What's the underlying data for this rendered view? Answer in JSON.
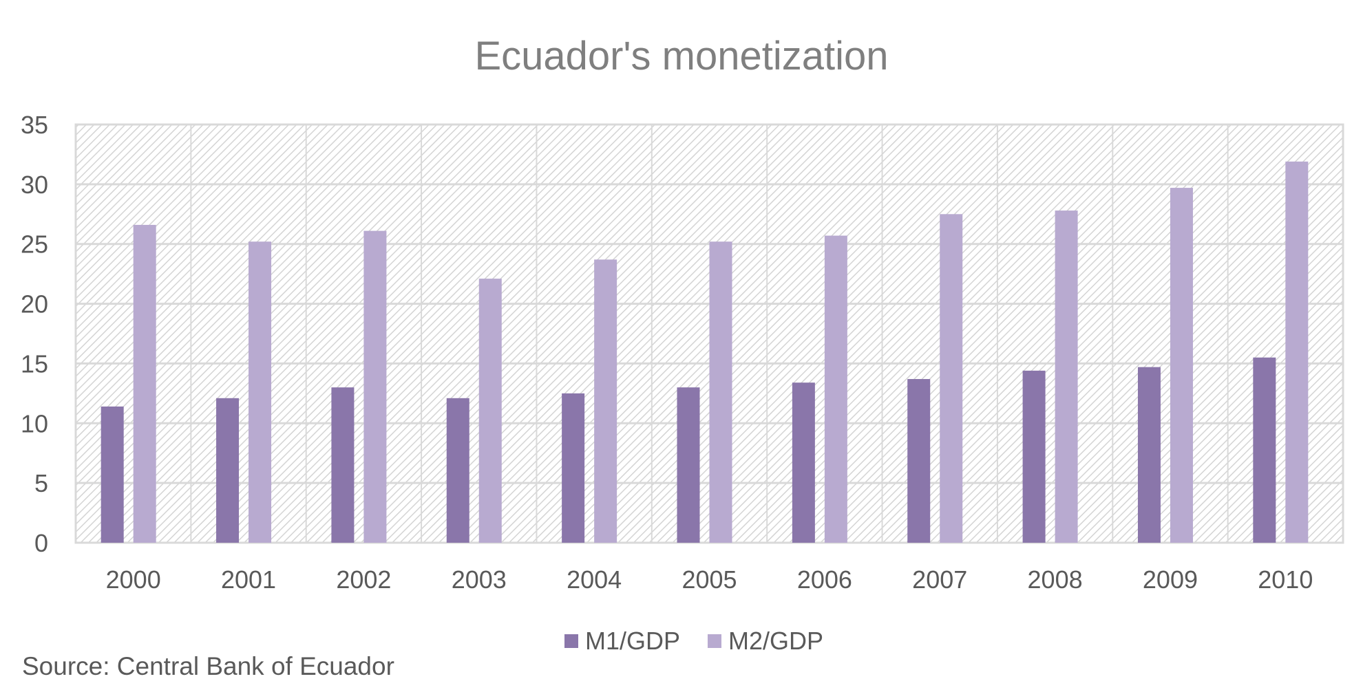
{
  "chart_data": {
    "type": "bar",
    "title": "Ecuador's monetization",
    "xlabel": "",
    "ylabel": "",
    "categories": [
      "2000",
      "2001",
      "2002",
      "2003",
      "2004",
      "2005",
      "2006",
      "2007",
      "2008",
      "2009",
      "2010"
    ],
    "series": [
      {
        "name": "M1/GDP",
        "color": "#8a76aa",
        "values": [
          11.4,
          12.1,
          13.0,
          12.1,
          12.5,
          13.0,
          13.4,
          13.7,
          14.4,
          14.7,
          15.5
        ]
      },
      {
        "name": "M2/GDP",
        "color": "#b8aad0",
        "values": [
          26.6,
          25.2,
          26.1,
          22.1,
          23.7,
          25.2,
          25.7,
          27.5,
          27.8,
          29.7,
          31.9
        ]
      }
    ],
    "ylim": [
      0,
      35
    ],
    "yticks": [
      0,
      5,
      10,
      15,
      20,
      25,
      30,
      35
    ],
    "grid": true,
    "legend": "bottom",
    "background": "diagonal hatch"
  },
  "source": "Source: Central Bank of Ecuador"
}
